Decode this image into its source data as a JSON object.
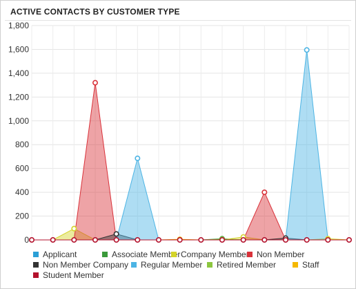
{
  "panel": {
    "title": "ACTIVE CONTACTS BY CUSTOMER TYPE"
  },
  "chart_data": {
    "type": "area",
    "title": "ACTIVE CONTACTS BY CUSTOMER TYPE",
    "ylim": [
      0,
      1800
    ],
    "yticks": [
      "0",
      "200",
      "400",
      "600",
      "800",
      "1,000",
      "1,200",
      "1,400",
      "1,600",
      "1,800"
    ],
    "grid": true,
    "legend_position": "bottom",
    "x": [
      1,
      2,
      3,
      4,
      5,
      6,
      7,
      8,
      9,
      10,
      11,
      12,
      13,
      14,
      15,
      16
    ],
    "series": [
      {
        "name": "Applicant",
        "color": "#2b9fd6",
        "values": [
          0,
          0,
          0,
          0,
          0,
          0,
          0,
          0,
          0,
          0,
          0,
          0,
          0,
          0,
          0,
          0
        ]
      },
      {
        "name": "Associate Member",
        "color": "#3a9a3a",
        "values": [
          0,
          0,
          0,
          0,
          0,
          0,
          0,
          0,
          0,
          10,
          0,
          0,
          0,
          0,
          0,
          0
        ]
      },
      {
        "name": "Company Member",
        "color": "#d4d42a",
        "values": [
          0,
          0,
          95,
          0,
          0,
          0,
          0,
          0,
          0,
          0,
          25,
          0,
          0,
          0,
          10,
          0
        ]
      },
      {
        "name": "Non Member",
        "color": "#d9323a",
        "values": [
          0,
          0,
          0,
          1320,
          0,
          0,
          0,
          0,
          0,
          0,
          0,
          400,
          0,
          0,
          0,
          0
        ]
      },
      {
        "name": "Non Member Company",
        "color": "#333333",
        "values": [
          0,
          0,
          0,
          0,
          50,
          0,
          0,
          0,
          0,
          0,
          0,
          0,
          15,
          0,
          0,
          0
        ]
      },
      {
        "name": "Regular Member",
        "color": "#4cb4e4",
        "values": [
          0,
          0,
          0,
          0,
          0,
          685,
          0,
          0,
          0,
          0,
          0,
          0,
          0,
          1595,
          0,
          0
        ]
      },
      {
        "name": "Retired Member",
        "color": "#8cc63f",
        "values": [
          0,
          0,
          0,
          0,
          0,
          0,
          0,
          0,
          0,
          5,
          0,
          0,
          0,
          0,
          0,
          0
        ]
      },
      {
        "name": "Staff",
        "color": "#f5b800",
        "values": [
          0,
          0,
          0,
          0,
          0,
          0,
          0,
          5,
          0,
          0,
          0,
          0,
          0,
          0,
          0,
          0
        ]
      },
      {
        "name": "Student Member",
        "color": "#b3112c",
        "values": [
          0,
          0,
          0,
          0,
          0,
          0,
          0,
          0,
          0,
          0,
          0,
          0,
          0,
          0,
          0,
          0
        ]
      }
    ]
  }
}
